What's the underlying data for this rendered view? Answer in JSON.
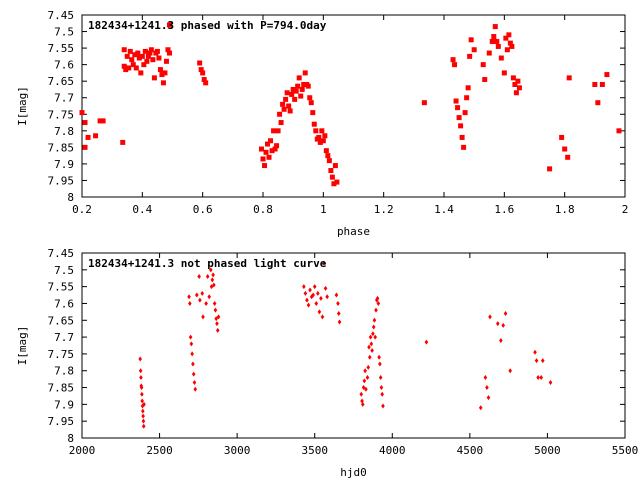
{
  "chart_data": [
    {
      "type": "scatter",
      "title": "182434+1241.3 phased with P=794.0day",
      "xlabel": "phase",
      "ylabel": "I[mag]",
      "xlim": [
        0.2,
        2.0
      ],
      "ylim": [
        8.0,
        7.45
      ],
      "y_inverted": true,
      "grid": false,
      "xticks": [
        "0.2",
        "0.4",
        "0.6",
        "0.8",
        "1",
        "1.2",
        "1.4",
        "1.6",
        "1.8",
        "2"
      ],
      "yticks": [
        "7.45",
        "7.5",
        "7.55",
        "7.6",
        "7.65",
        "7.7",
        "7.75",
        "7.8",
        "7.85",
        "7.9",
        "7.95",
        "8"
      ],
      "marker_color": "#ff0000",
      "series": [
        {
          "points": [
            [
              0.2,
              7.745
            ],
            [
              0.21,
              7.775
            ],
            [
              0.21,
              7.85
            ],
            [
              0.22,
              7.82
            ],
            [
              0.245,
              7.815
            ],
            [
              0.26,
              7.77
            ],
            [
              0.27,
              7.77
            ],
            [
              0.335,
              7.835
            ],
            [
              0.34,
              7.555
            ],
            [
              0.34,
              7.605
            ],
            [
              0.345,
              7.615
            ],
            [
              0.35,
              7.575
            ],
            [
              0.355,
              7.61
            ],
            [
              0.36,
              7.56
            ],
            [
              0.365,
              7.585
            ],
            [
              0.37,
              7.6
            ],
            [
              0.375,
              7.57
            ],
            [
              0.38,
              7.61
            ],
            [
              0.385,
              7.565
            ],
            [
              0.39,
              7.58
            ],
            [
              0.395,
              7.625
            ],
            [
              0.4,
              7.575
            ],
            [
              0.405,
              7.6
            ],
            [
              0.41,
              7.56
            ],
            [
              0.415,
              7.59
            ],
            [
              0.42,
              7.575
            ],
            [
              0.425,
              7.565
            ],
            [
              0.43,
              7.555
            ],
            [
              0.435,
              7.585
            ],
            [
              0.44,
              7.64
            ],
            [
              0.445,
              7.565
            ],
            [
              0.45,
              7.56
            ],
            [
              0.455,
              7.58
            ],
            [
              0.46,
              7.615
            ],
            [
              0.465,
              7.63
            ],
            [
              0.47,
              7.655
            ],
            [
              0.475,
              7.625
            ],
            [
              0.48,
              7.59
            ],
            [
              0.485,
              7.555
            ],
            [
              0.49,
              7.565
            ],
            [
              0.49,
              7.48
            ],
            [
              0.59,
              7.595
            ],
            [
              0.595,
              7.615
            ],
            [
              0.6,
              7.625
            ],
            [
              0.605,
              7.645
            ],
            [
              0.61,
              7.655
            ],
            [
              0.795,
              7.855
            ],
            [
              0.8,
              7.885
            ],
            [
              0.805,
              7.905
            ],
            [
              0.81,
              7.865
            ],
            [
              0.815,
              7.84
            ],
            [
              0.82,
              7.88
            ],
            [
              0.825,
              7.83
            ],
            [
              0.83,
              7.86
            ],
            [
              0.835,
              7.8
            ],
            [
              0.84,
              7.855
            ],
            [
              0.845,
              7.845
            ],
            [
              0.85,
              7.8
            ],
            [
              0.855,
              7.75
            ],
            [
              0.86,
              7.775
            ],
            [
              0.865,
              7.72
            ],
            [
              0.87,
              7.735
            ],
            [
              0.875,
              7.705
            ],
            [
              0.88,
              7.685
            ],
            [
              0.885,
              7.725
            ],
            [
              0.89,
              7.74
            ],
            [
              0.895,
              7.69
            ],
            [
              0.9,
              7.675
            ],
            [
              0.905,
              7.705
            ],
            [
              0.91,
              7.68
            ],
            [
              0.915,
              7.665
            ],
            [
              0.92,
              7.64
            ],
            [
              0.925,
              7.695
            ],
            [
              0.93,
              7.675
            ],
            [
              0.935,
              7.66
            ],
            [
              0.94,
              7.625
            ],
            [
              0.945,
              7.66
            ],
            [
              0.95,
              7.665
            ],
            [
              0.955,
              7.7
            ],
            [
              0.96,
              7.715
            ],
            [
              0.965,
              7.745
            ],
            [
              0.97,
              7.78
            ],
            [
              0.975,
              7.8
            ],
            [
              0.98,
              7.825
            ],
            [
              0.985,
              7.82
            ],
            [
              0.99,
              7.835
            ],
            [
              0.995,
              7.8
            ],
            [
              1.0,
              7.83
            ],
            [
              1.005,
              7.815
            ],
            [
              1.01,
              7.86
            ],
            [
              1.015,
              7.875
            ],
            [
              1.02,
              7.89
            ],
            [
              1.025,
              7.92
            ],
            [
              1.03,
              7.94
            ],
            [
              1.035,
              7.96
            ],
            [
              1.04,
              7.905
            ],
            [
              1.045,
              7.955
            ],
            [
              1.335,
              7.715
            ],
            [
              1.43,
              7.585
            ],
            [
              1.435,
              7.6
            ],
            [
              1.44,
              7.71
            ],
            [
              1.445,
              7.73
            ],
            [
              1.45,
              7.76
            ],
            [
              1.455,
              7.785
            ],
            [
              1.46,
              7.82
            ],
            [
              1.465,
              7.85
            ],
            [
              1.47,
              7.745
            ],
            [
              1.475,
              7.7
            ],
            [
              1.48,
              7.67
            ],
            [
              1.485,
              7.575
            ],
            [
              1.49,
              7.525
            ],
            [
              1.5,
              7.555
            ],
            [
              1.53,
              7.6
            ],
            [
              1.535,
              7.645
            ],
            [
              1.55,
              7.565
            ],
            [
              1.56,
              7.53
            ],
            [
              1.565,
              7.515
            ],
            [
              1.57,
              7.485
            ],
            [
              1.575,
              7.53
            ],
            [
              1.58,
              7.545
            ],
            [
              1.59,
              7.58
            ],
            [
              1.6,
              7.625
            ],
            [
              1.605,
              7.52
            ],
            [
              1.61,
              7.555
            ],
            [
              1.615,
              7.51
            ],
            [
              1.62,
              7.535
            ],
            [
              1.625,
              7.545
            ],
            [
              1.63,
              7.64
            ],
            [
              1.635,
              7.66
            ],
            [
              1.64,
              7.685
            ],
            [
              1.645,
              7.65
            ],
            [
              1.65,
              7.67
            ],
            [
              1.75,
              7.915
            ],
            [
              1.79,
              7.82
            ],
            [
              1.8,
              7.855
            ],
            [
              1.81,
              7.88
            ],
            [
              1.815,
              7.64
            ],
            [
              1.9,
              7.66
            ],
            [
              1.91,
              7.715
            ],
            [
              1.925,
              7.66
            ],
            [
              1.94,
              7.63
            ],
            [
              1.98,
              7.8
            ]
          ]
        }
      ]
    },
    {
      "type": "scatter",
      "title": "182434+1241.3 not phased light curve",
      "xlabel": "hjd0",
      "ylabel": "I[mag]",
      "xlim": [
        2000,
        5500
      ],
      "ylim": [
        8.0,
        7.45
      ],
      "y_inverted": true,
      "grid": false,
      "xticks": [
        "2000",
        "2500",
        "3000",
        "3500",
        "4000",
        "4500",
        "5000",
        "5500"
      ],
      "yticks": [
        "7.45",
        "7.5",
        "7.55",
        "7.6",
        "7.65",
        "7.7",
        "7.75",
        "7.8",
        "7.85",
        "7.9",
        "7.95",
        "8"
      ],
      "marker_color": "#ff0000",
      "series": [
        {
          "points": [
            [
              2375,
              7.765
            ],
            [
              2378,
              7.8
            ],
            [
              2380,
              7.82
            ],
            [
              2382,
              7.845
            ],
            [
              2384,
              7.85
            ],
            [
              2386,
              7.87
            ],
            [
              2388,
              7.89
            ],
            [
              2390,
              7.905
            ],
            [
              2392,
              7.92
            ],
            [
              2394,
              7.935
            ],
            [
              2396,
              7.95
            ],
            [
              2398,
              7.965
            ],
            [
              2400,
              7.9
            ],
            [
              2690,
              7.58
            ],
            [
              2695,
              7.6
            ],
            [
              2700,
              7.7
            ],
            [
              2705,
              7.72
            ],
            [
              2710,
              7.75
            ],
            [
              2715,
              7.78
            ],
            [
              2720,
              7.81
            ],
            [
              2725,
              7.835
            ],
            [
              2730,
              7.855
            ],
            [
              2740,
              7.575
            ],
            [
              2755,
              7.52
            ],
            [
              2760,
              7.59
            ],
            [
              2775,
              7.57
            ],
            [
              2780,
              7.64
            ],
            [
              2800,
              7.6
            ],
            [
              2810,
              7.52
            ],
            [
              2820,
              7.58
            ],
            [
              2830,
              7.5
            ],
            [
              2835,
              7.55
            ],
            [
              2840,
              7.53
            ],
            [
              2845,
              7.515
            ],
            [
              2850,
              7.545
            ],
            [
              2855,
              7.6
            ],
            [
              2860,
              7.62
            ],
            [
              2865,
              7.645
            ],
            [
              2870,
              7.66
            ],
            [
              2875,
              7.68
            ],
            [
              2880,
              7.64
            ],
            [
              3430,
              7.55
            ],
            [
              3440,
              7.57
            ],
            [
              3450,
              7.59
            ],
            [
              3460,
              7.605
            ],
            [
              3470,
              7.56
            ],
            [
              3480,
              7.58
            ],
            [
              3490,
              7.575
            ],
            [
              3500,
              7.55
            ],
            [
              3510,
              7.6
            ],
            [
              3520,
              7.57
            ],
            [
              3530,
              7.625
            ],
            [
              3540,
              7.585
            ],
            [
              3550,
              7.64
            ],
            [
              3560,
              7.48
            ],
            [
              3570,
              7.555
            ],
            [
              3580,
              7.58
            ],
            [
              3640,
              7.575
            ],
            [
              3650,
              7.6
            ],
            [
              3655,
              7.63
            ],
            [
              3660,
              7.655
            ],
            [
              3800,
              7.87
            ],
            [
              3805,
              7.89
            ],
            [
              3810,
              7.9
            ],
            [
              3815,
              7.85
            ],
            [
              3820,
              7.83
            ],
            [
              3825,
              7.8
            ],
            [
              3830,
              7.855
            ],
            [
              3840,
              7.82
            ],
            [
              3845,
              7.79
            ],
            [
              3850,
              7.73
            ],
            [
              3855,
              7.76
            ],
            [
              3860,
              7.7
            ],
            [
              3865,
              7.72
            ],
            [
              3870,
              7.74
            ],
            [
              3875,
              7.69
            ],
            [
              3880,
              7.67
            ],
            [
              3885,
              7.65
            ],
            [
              3890,
              7.7
            ],
            [
              3895,
              7.62
            ],
            [
              3900,
              7.59
            ],
            [
              3905,
              7.585
            ],
            [
              3910,
              7.6
            ],
            [
              3915,
              7.76
            ],
            [
              3920,
              7.78
            ],
            [
              3925,
              7.82
            ],
            [
              3930,
              7.85
            ],
            [
              3935,
              7.87
            ],
            [
              3940,
              7.905
            ],
            [
              4220,
              7.715
            ],
            [
              4570,
              7.91
            ],
            [
              4600,
              7.82
            ],
            [
              4610,
              7.85
            ],
            [
              4620,
              7.88
            ],
            [
              4630,
              7.64
            ],
            [
              4680,
              7.66
            ],
            [
              4700,
              7.71
            ],
            [
              4715,
              7.665
            ],
            [
              4730,
              7.63
            ],
            [
              4760,
              7.8
            ],
            [
              4920,
              7.745
            ],
            [
              4930,
              7.77
            ],
            [
              4940,
              7.82
            ],
            [
              4960,
              7.82
            ],
            [
              4970,
              7.77
            ],
            [
              5020,
              7.835
            ]
          ]
        }
      ]
    }
  ]
}
